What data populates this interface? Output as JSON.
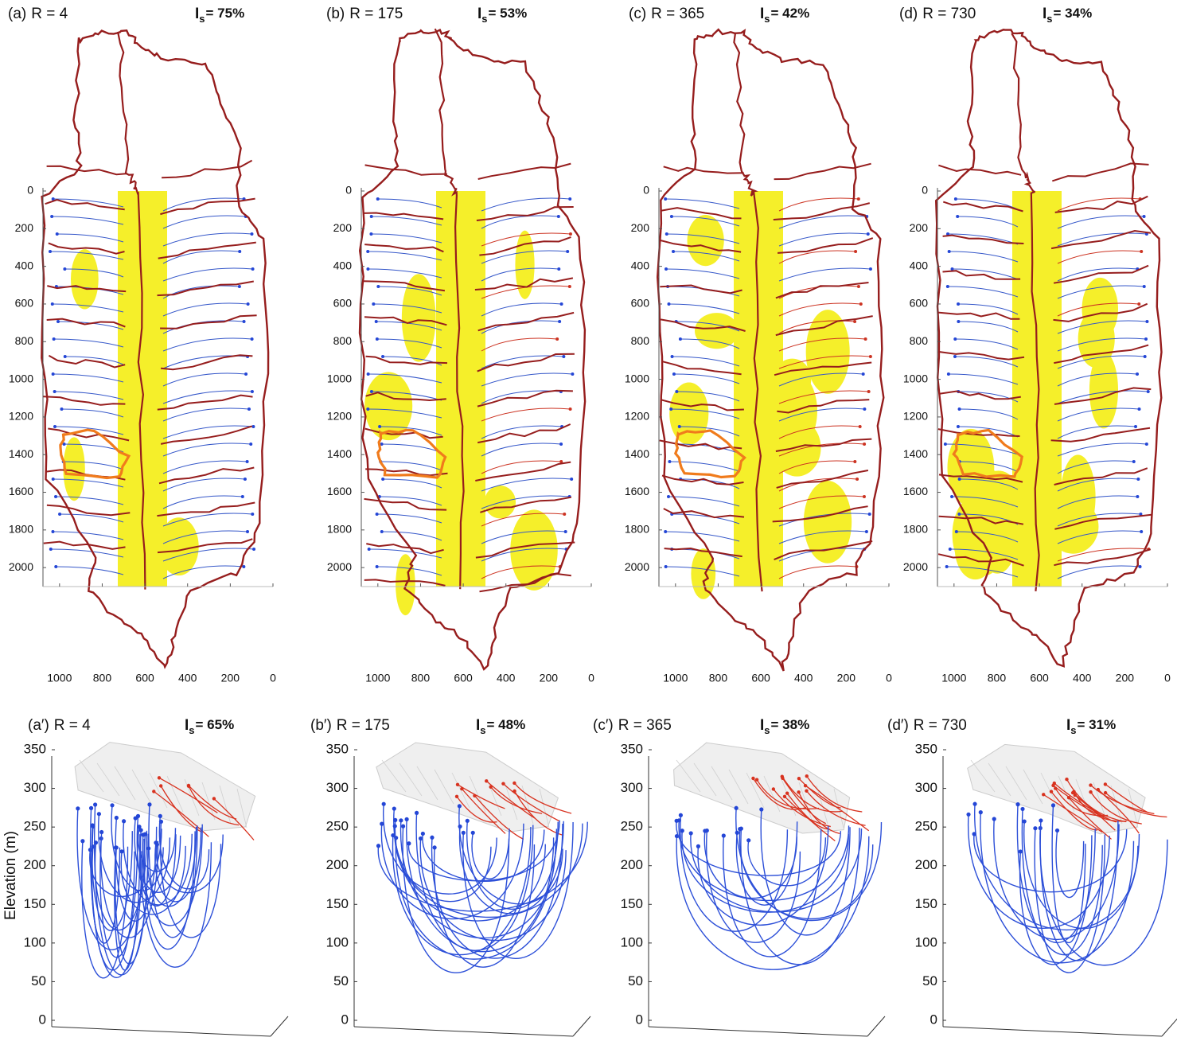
{
  "chart_data": [
    {
      "type": "map",
      "panel": "(a)",
      "parameter": "R = 4",
      "index_symbol": "I",
      "index_subscript": "s",
      "index_value": "= 75%",
      "xlim": [
        1100,
        0
      ],
      "xticks": [
        1000,
        800,
        600,
        400,
        200,
        0
      ],
      "ylim": [
        2050,
        0
      ],
      "yticks": [
        0,
        200,
        400,
        600,
        800,
        1000,
        1200,
        1400,
        1600,
        1800,
        2000
      ]
    },
    {
      "type": "map",
      "panel": "(b)",
      "parameter": "R = 175",
      "index_symbol": "I",
      "index_subscript": "s",
      "index_value": "= 53%",
      "xlim": [
        1100,
        0
      ],
      "xticks": [
        1000,
        800,
        600,
        400,
        200,
        0
      ],
      "ylim": [
        2050,
        0
      ],
      "yticks": [
        0,
        200,
        400,
        600,
        800,
        1000,
        1200,
        1400,
        1600,
        1800,
        2000
      ]
    },
    {
      "type": "map",
      "panel": "(c)",
      "parameter": "R = 365",
      "index_symbol": "I",
      "index_subscript": "s",
      "index_value": "= 42%",
      "xlim": [
        1100,
        0
      ],
      "xticks": [
        1000,
        800,
        600,
        400,
        200,
        0
      ],
      "ylim": [
        2050,
        0
      ],
      "yticks": [
        0,
        200,
        400,
        600,
        800,
        1000,
        1200,
        1400,
        1600,
        1800,
        2000
      ]
    },
    {
      "type": "map",
      "panel": "(d)",
      "parameter": "R = 730",
      "index_symbol": "I",
      "index_subscript": "s",
      "index_value": "= 34%",
      "xlim": [
        1100,
        0
      ],
      "xticks": [
        1000,
        800,
        600,
        400,
        200,
        0
      ],
      "ylim": [
        2050,
        0
      ],
      "yticks": [
        0,
        200,
        400,
        600,
        800,
        1000,
        1200,
        1400,
        1600,
        1800,
        2000
      ]
    },
    {
      "type": "surface3d",
      "panel": "(a′)",
      "parameter": "R = 4",
      "index_symbol": "I",
      "index_subscript": "s",
      "index_value": "= 65%",
      "ylabel": "Elevation (m)",
      "ylim": [
        0,
        360
      ],
      "yticks": [
        0,
        50,
        100,
        150,
        200,
        250,
        300,
        350
      ]
    },
    {
      "type": "surface3d",
      "panel": "(b′)",
      "parameter": "R = 175",
      "index_symbol": "I",
      "index_subscript": "s",
      "index_value": "= 48%",
      "ylim": [
        0,
        360
      ],
      "yticks": [
        0,
        50,
        100,
        150,
        200,
        250,
        300,
        350
      ]
    },
    {
      "type": "surface3d",
      "panel": "(c′)",
      "parameter": "R = 365",
      "index_symbol": "I",
      "index_subscript": "s",
      "index_value": "= 38%",
      "ylim": [
        0,
        360
      ],
      "yticks": [
        0,
        50,
        100,
        150,
        200,
        250,
        300,
        350
      ]
    },
    {
      "type": "surface3d",
      "panel": "(d′)",
      "parameter": "R = 730",
      "index_symbol": "I",
      "index_subscript": "s",
      "index_value": "= 31%",
      "ylim": [
        0,
        360
      ],
      "yticks": [
        0,
        50,
        100,
        150,
        200,
        250,
        300,
        350
      ]
    }
  ]
}
